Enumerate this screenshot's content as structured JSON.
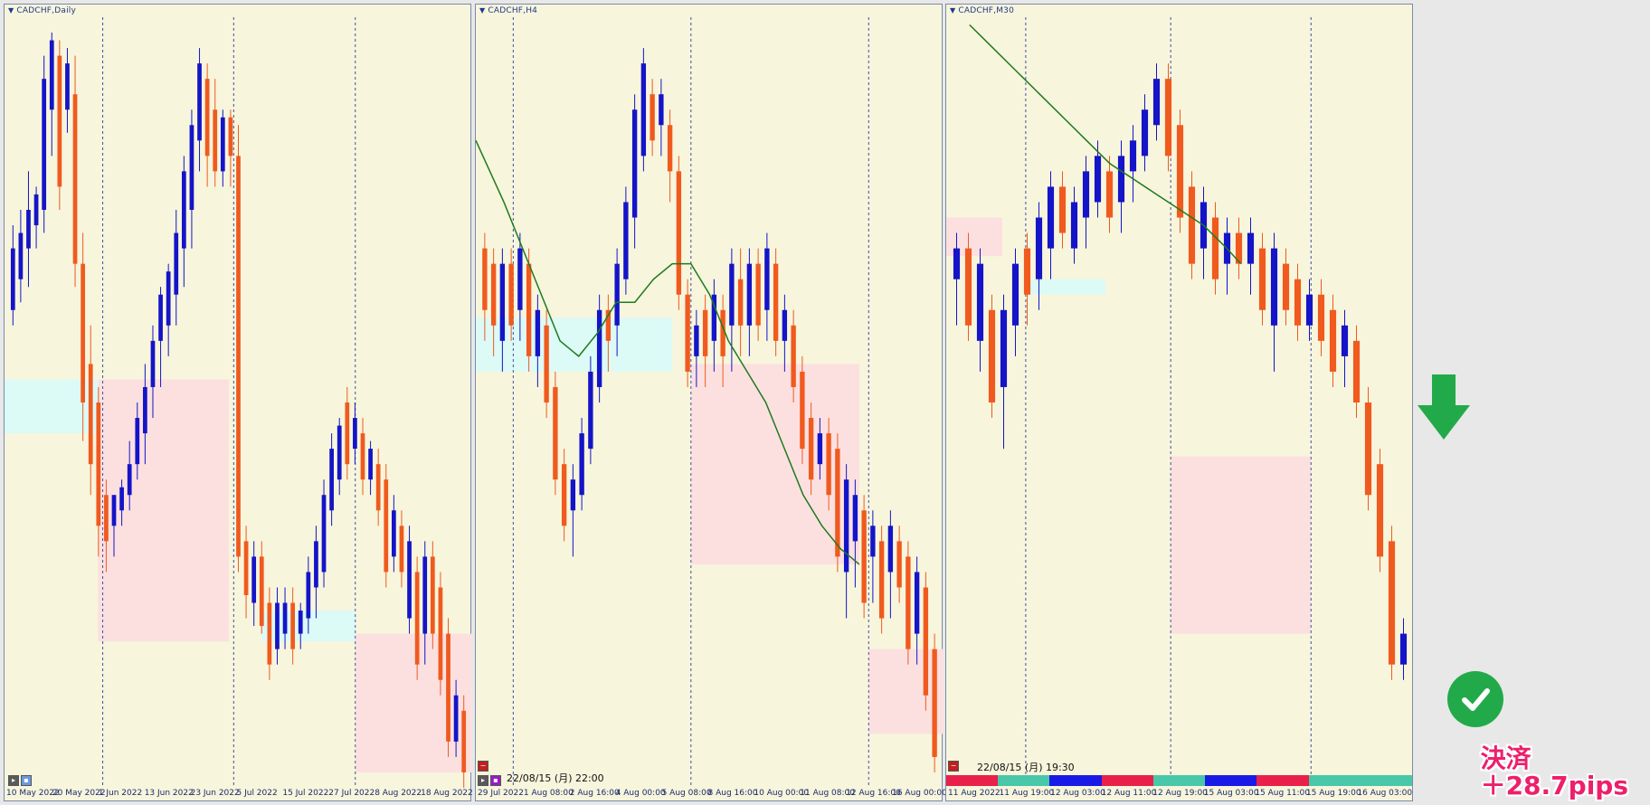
{
  "charts": [
    {
      "title": "CADCHF,Daily",
      "x_ticks": [
        "10 May 2022",
        "20 May 2022",
        "1 Jun 2022",
        "13 Jun 2022",
        "23 Jun 2022",
        "5 Jul 2022",
        "15 Jul 2022",
        "27 Jul 2022",
        "8 Aug 2022",
        "18 Aug 2022"
      ],
      "zones": [
        {
          "type": "demand",
          "x0": 0.0,
          "x1": 0.2,
          "y0": 0.47,
          "y1": 0.54
        },
        {
          "type": "supply",
          "x0": 0.2,
          "x1": 0.48,
          "y0": 0.47,
          "y1": 0.81
        },
        {
          "type": "demand",
          "x0": 0.55,
          "x1": 0.75,
          "y0": 0.77,
          "y1": 0.81
        },
        {
          "type": "supply",
          "x0": 0.75,
          "x1": 1.0,
          "y0": 0.8,
          "y1": 0.98
        }
      ],
      "vlines": [
        0.21,
        0.49,
        0.75
      ],
      "candles": [
        [
          1,
          0.27,
          0.4,
          0.3,
          0.38
        ],
        [
          1,
          0.25,
          0.37,
          0.28,
          0.34
        ],
        [
          1,
          0.2,
          0.35,
          0.3,
          0.25
        ],
        [
          1,
          0.22,
          0.3,
          0.27,
          0.23
        ],
        [
          1,
          0.05,
          0.28,
          0.25,
          0.08
        ],
        [
          1,
          0.02,
          0.18,
          0.12,
          0.03
        ],
        [
          0,
          0.03,
          0.25,
          0.05,
          0.22
        ],
        [
          1,
          0.04,
          0.15,
          0.12,
          0.06
        ],
        [
          0,
          0.05,
          0.35,
          0.1,
          0.32
        ],
        [
          0,
          0.28,
          0.55,
          0.32,
          0.5
        ],
        [
          0,
          0.4,
          0.62,
          0.45,
          0.58
        ],
        [
          0,
          0.48,
          0.7,
          0.5,
          0.66
        ],
        [
          0,
          0.6,
          0.72,
          0.62,
          0.68
        ],
        [
          1,
          0.62,
          0.7,
          0.66,
          0.62
        ],
        [
          1,
          0.6,
          0.66,
          0.64,
          0.61
        ],
        [
          1,
          0.55,
          0.64,
          0.62,
          0.58
        ],
        [
          1,
          0.5,
          0.6,
          0.58,
          0.52
        ],
        [
          1,
          0.45,
          0.58,
          0.54,
          0.48
        ],
        [
          1,
          0.4,
          0.52,
          0.48,
          0.42
        ],
        [
          1,
          0.35,
          0.48,
          0.42,
          0.36
        ],
        [
          1,
          0.32,
          0.44,
          0.4,
          0.33
        ],
        [
          1,
          0.25,
          0.4,
          0.36,
          0.28
        ],
        [
          1,
          0.18,
          0.35,
          0.3,
          0.2
        ],
        [
          1,
          0.12,
          0.3,
          0.25,
          0.14
        ],
        [
          1,
          0.04,
          0.2,
          0.16,
          0.06
        ],
        [
          0,
          0.06,
          0.22,
          0.08,
          0.18
        ],
        [
          0,
          0.08,
          0.22,
          0.12,
          0.2
        ],
        [
          1,
          0.12,
          0.22,
          0.2,
          0.13
        ],
        [
          0,
          0.12,
          0.22,
          0.13,
          0.18
        ],
        [
          0,
          0.14,
          0.72,
          0.18,
          0.7
        ],
        [
          0,
          0.66,
          0.78,
          0.68,
          0.75
        ],
        [
          1,
          0.68,
          0.79,
          0.76,
          0.7
        ],
        [
          0,
          0.68,
          0.8,
          0.7,
          0.79
        ],
        [
          0,
          0.74,
          0.86,
          0.76,
          0.84
        ],
        [
          1,
          0.74,
          0.84,
          0.82,
          0.76
        ],
        [
          1,
          0.74,
          0.82,
          0.8,
          0.76
        ],
        [
          0,
          0.74,
          0.84,
          0.76,
          0.82
        ],
        [
          1,
          0.76,
          0.82,
          0.8,
          0.77
        ],
        [
          1,
          0.7,
          0.8,
          0.78,
          0.72
        ],
        [
          1,
          0.66,
          0.78,
          0.74,
          0.68
        ],
        [
          1,
          0.6,
          0.74,
          0.72,
          0.62
        ],
        [
          1,
          0.54,
          0.66,
          0.64,
          0.56
        ],
        [
          1,
          0.52,
          0.62,
          0.6,
          0.53
        ],
        [
          0,
          0.48,
          0.6,
          0.5,
          0.58
        ],
        [
          1,
          0.5,
          0.58,
          0.56,
          0.52
        ],
        [
          0,
          0.52,
          0.62,
          0.54,
          0.6
        ],
        [
          1,
          0.55,
          0.62,
          0.6,
          0.56
        ],
        [
          0,
          0.56,
          0.66,
          0.58,
          0.64
        ],
        [
          0,
          0.58,
          0.74,
          0.6,
          0.72
        ],
        [
          1,
          0.62,
          0.72,
          0.7,
          0.64
        ],
        [
          0,
          0.64,
          0.74,
          0.66,
          0.72
        ],
        [
          1,
          0.66,
          0.8,
          0.78,
          0.68
        ],
        [
          0,
          0.7,
          0.86,
          0.72,
          0.84
        ],
        [
          1,
          0.68,
          0.84,
          0.8,
          0.7
        ],
        [
          0,
          0.68,
          0.82,
          0.7,
          0.8
        ],
        [
          0,
          0.72,
          0.88,
          0.74,
          0.86
        ],
        [
          0,
          0.78,
          0.96,
          0.8,
          0.94
        ],
        [
          1,
          0.86,
          0.96,
          0.94,
          0.88
        ],
        [
          0,
          0.88,
          1.0,
          0.9,
          0.98
        ]
      ]
    },
    {
      "title": "CADCHF,H4",
      "x_ticks": [
        "29 Jul 2022",
        "1 Aug 08:00",
        "2 Aug 16:00",
        "4 Aug 00:00",
        "5 Aug 08:00",
        "8 Aug 16:00",
        "10 Aug 00:00",
        "11 Aug 08:00",
        "12 Aug 16:00",
        "16 Aug 00:00"
      ],
      "zones": [
        {
          "type": "demand",
          "x0": 0.0,
          "x1": 0.42,
          "y0": 0.39,
          "y1": 0.46
        },
        {
          "type": "supply",
          "x0": 0.46,
          "x1": 0.82,
          "y0": 0.45,
          "y1": 0.71
        },
        {
          "type": "supply",
          "x0": 0.84,
          "x1": 1.0,
          "y0": 0.82,
          "y1": 0.93
        }
      ],
      "vlines": [
        0.08,
        0.46,
        0.84
      ],
      "ma_line": [
        [
          0.0,
          0.16
        ],
        [
          0.06,
          0.24
        ],
        [
          0.1,
          0.3
        ],
        [
          0.14,
          0.36
        ],
        [
          0.18,
          0.42
        ],
        [
          0.22,
          0.44
        ],
        [
          0.26,
          0.41
        ],
        [
          0.3,
          0.37
        ],
        [
          0.34,
          0.37
        ],
        [
          0.38,
          0.34
        ],
        [
          0.42,
          0.32
        ],
        [
          0.46,
          0.32
        ],
        [
          0.5,
          0.36
        ],
        [
          0.54,
          0.42
        ],
        [
          0.58,
          0.46
        ],
        [
          0.62,
          0.5
        ],
        [
          0.66,
          0.56
        ],
        [
          0.7,
          0.62
        ],
        [
          0.74,
          0.66
        ],
        [
          0.78,
          0.69
        ],
        [
          0.82,
          0.71
        ]
      ],
      "candles": [
        [
          0,
          0.28,
          0.42,
          0.3,
          0.38
        ],
        [
          0,
          0.3,
          0.44,
          0.32,
          0.4
        ],
        [
          1,
          0.3,
          0.46,
          0.42,
          0.32
        ],
        [
          0,
          0.3,
          0.42,
          0.32,
          0.4
        ],
        [
          1,
          0.28,
          0.42,
          0.38,
          0.3
        ],
        [
          0,
          0.3,
          0.46,
          0.32,
          0.44
        ],
        [
          1,
          0.36,
          0.48,
          0.44,
          0.38
        ],
        [
          0,
          0.38,
          0.52,
          0.4,
          0.5
        ],
        [
          0,
          0.46,
          0.62,
          0.48,
          0.6
        ],
        [
          0,
          0.56,
          0.68,
          0.58,
          0.66
        ],
        [
          1,
          0.58,
          0.7,
          0.64,
          0.6
        ],
        [
          1,
          0.52,
          0.64,
          0.62,
          0.54
        ],
        [
          1,
          0.44,
          0.58,
          0.56,
          0.46
        ],
        [
          1,
          0.36,
          0.5,
          0.48,
          0.38
        ],
        [
          0,
          0.36,
          0.46,
          0.38,
          0.42
        ],
        [
          1,
          0.3,
          0.44,
          0.4,
          0.32
        ],
        [
          1,
          0.22,
          0.36,
          0.34,
          0.24
        ],
        [
          1,
          0.1,
          0.3,
          0.26,
          0.12
        ],
        [
          1,
          0.04,
          0.2,
          0.18,
          0.06
        ],
        [
          0,
          0.08,
          0.18,
          0.1,
          0.16
        ],
        [
          1,
          0.08,
          0.18,
          0.14,
          0.1
        ],
        [
          0,
          0.12,
          0.24,
          0.14,
          0.2
        ],
        [
          0,
          0.18,
          0.38,
          0.2,
          0.36
        ],
        [
          0,
          0.34,
          0.48,
          0.36,
          0.46
        ],
        [
          1,
          0.38,
          0.48,
          0.44,
          0.4
        ],
        [
          0,
          0.36,
          0.48,
          0.38,
          0.44
        ],
        [
          1,
          0.34,
          0.46,
          0.42,
          0.36
        ],
        [
          0,
          0.36,
          0.48,
          0.38,
          0.44
        ],
        [
          1,
          0.3,
          0.46,
          0.4,
          0.32
        ],
        [
          0,
          0.3,
          0.44,
          0.34,
          0.4
        ],
        [
          1,
          0.3,
          0.44,
          0.4,
          0.32
        ],
        [
          0,
          0.3,
          0.42,
          0.32,
          0.4
        ],
        [
          1,
          0.28,
          0.42,
          0.38,
          0.3
        ],
        [
          0,
          0.3,
          0.44,
          0.32,
          0.42
        ],
        [
          1,
          0.36,
          0.46,
          0.42,
          0.38
        ],
        [
          0,
          0.38,
          0.5,
          0.4,
          0.48
        ],
        [
          0,
          0.44,
          0.58,
          0.46,
          0.56
        ],
        [
          0,
          0.5,
          0.62,
          0.52,
          0.6
        ],
        [
          1,
          0.52,
          0.6,
          0.58,
          0.54
        ],
        [
          0,
          0.52,
          0.64,
          0.54,
          0.62
        ],
        [
          0,
          0.54,
          0.72,
          0.56,
          0.7
        ],
        [
          1,
          0.58,
          0.78,
          0.72,
          0.6
        ],
        [
          1,
          0.6,
          0.74,
          0.68,
          0.62
        ],
        [
          0,
          0.62,
          0.78,
          0.64,
          0.76
        ],
        [
          1,
          0.64,
          0.76,
          0.7,
          0.66
        ],
        [
          0,
          0.66,
          0.8,
          0.68,
          0.78
        ],
        [
          1,
          0.64,
          0.78,
          0.72,
          0.66
        ],
        [
          0,
          0.66,
          0.76,
          0.68,
          0.74
        ],
        [
          0,
          0.68,
          0.84,
          0.7,
          0.82
        ],
        [
          1,
          0.7,
          0.84,
          0.8,
          0.72
        ],
        [
          0,
          0.72,
          0.9,
          0.74,
          0.88
        ],
        [
          0,
          0.8,
          0.98,
          0.82,
          0.96
        ]
      ]
    },
    {
      "title": "CADCHF,M30",
      "x_ticks": [
        "11 Aug 2022",
        "11 Aug 19:00",
        "12 Aug 03:00",
        "12 Aug 11:00",
        "12 Aug 19:00",
        "15 Aug 03:00",
        "15 Aug 11:00",
        "15 Aug 19:00",
        "16 Aug 03:00"
      ],
      "zones": [
        {
          "type": "supply",
          "x0": 0.0,
          "x1": 0.12,
          "y0": 0.26,
          "y1": 0.31
        },
        {
          "type": "demand",
          "x0": 0.18,
          "x1": 0.34,
          "y0": 0.34,
          "y1": 0.36
        },
        {
          "type": "supply",
          "x0": 0.48,
          "x1": 0.78,
          "y0": 0.57,
          "y1": 0.8
        }
      ],
      "vlines": [
        0.17,
        0.48,
        0.78
      ],
      "ma_line": [
        [
          0.05,
          0.01
        ],
        [
          0.1,
          0.04
        ],
        [
          0.15,
          0.07
        ],
        [
          0.2,
          0.1
        ],
        [
          0.25,
          0.13
        ],
        [
          0.3,
          0.16
        ],
        [
          0.35,
          0.19
        ],
        [
          0.4,
          0.21
        ],
        [
          0.45,
          0.23
        ],
        [
          0.5,
          0.25
        ],
        [
          0.55,
          0.27
        ],
        [
          0.6,
          0.3
        ],
        [
          0.63,
          0.32
        ]
      ],
      "candles": [
        [
          1,
          0.28,
          0.4,
          0.34,
          0.3
        ],
        [
          0,
          0.28,
          0.42,
          0.3,
          0.4
        ],
        [
          1,
          0.3,
          0.46,
          0.42,
          0.32
        ],
        [
          0,
          0.36,
          0.52,
          0.38,
          0.5
        ],
        [
          1,
          0.36,
          0.56,
          0.48,
          0.38
        ],
        [
          1,
          0.3,
          0.44,
          0.4,
          0.32
        ],
        [
          0,
          0.28,
          0.4,
          0.3,
          0.36
        ],
        [
          1,
          0.24,
          0.38,
          0.34,
          0.26
        ],
        [
          1,
          0.2,
          0.34,
          0.3,
          0.22
        ],
        [
          0,
          0.2,
          0.3,
          0.22,
          0.28
        ],
        [
          1,
          0.22,
          0.32,
          0.3,
          0.24
        ],
        [
          1,
          0.18,
          0.3,
          0.26,
          0.2
        ],
        [
          1,
          0.16,
          0.26,
          0.24,
          0.18
        ],
        [
          0,
          0.18,
          0.28,
          0.2,
          0.26
        ],
        [
          1,
          0.16,
          0.28,
          0.24,
          0.18
        ],
        [
          1,
          0.14,
          0.24,
          0.2,
          0.16
        ],
        [
          1,
          0.1,
          0.2,
          0.18,
          0.12
        ],
        [
          1,
          0.06,
          0.16,
          0.14,
          0.08
        ],
        [
          0,
          0.06,
          0.2,
          0.08,
          0.18
        ],
        [
          0,
          0.12,
          0.28,
          0.14,
          0.26
        ],
        [
          0,
          0.2,
          0.34,
          0.22,
          0.32
        ],
        [
          1,
          0.22,
          0.34,
          0.3,
          0.24
        ],
        [
          0,
          0.24,
          0.36,
          0.26,
          0.34
        ],
        [
          1,
          0.26,
          0.36,
          0.32,
          0.28
        ],
        [
          0,
          0.26,
          0.34,
          0.28,
          0.32
        ],
        [
          1,
          0.26,
          0.36,
          0.32,
          0.28
        ],
        [
          0,
          0.28,
          0.4,
          0.3,
          0.38
        ],
        [
          1,
          0.28,
          0.46,
          0.4,
          0.3
        ],
        [
          0,
          0.3,
          0.4,
          0.32,
          0.38
        ],
        [
          0,
          0.32,
          0.42,
          0.34,
          0.4
        ],
        [
          1,
          0.34,
          0.42,
          0.4,
          0.36
        ],
        [
          0,
          0.34,
          0.44,
          0.36,
          0.42
        ],
        [
          0,
          0.36,
          0.48,
          0.38,
          0.46
        ],
        [
          1,
          0.38,
          0.48,
          0.44,
          0.4
        ],
        [
          0,
          0.4,
          0.52,
          0.42,
          0.5
        ],
        [
          0,
          0.48,
          0.64,
          0.5,
          0.62
        ],
        [
          0,
          0.56,
          0.72,
          0.58,
          0.7
        ],
        [
          0,
          0.66,
          0.86,
          0.68,
          0.84
        ],
        [
          1,
          0.78,
          0.86,
          0.84,
          0.8
        ]
      ]
    }
  ],
  "panel_H4": {
    "datetime": "22/08/15 (月) 22:00"
  },
  "panel_M30": {
    "datetime": "22/08/15 (月) 19:30",
    "strip_colors": [
      "#e8204a",
      "#48c8a8",
      "#1a1ae6",
      "#e8204a",
      "#48c8a8",
      "#1a1ae6",
      "#e8204a",
      "#48c8a8",
      "#48c8a8"
    ]
  },
  "annotation": {
    "line1": "決済",
    "line2": "＋28.7pips",
    "arrow_color": "#22aa4a",
    "check_color": "#22aa4a"
  },
  "colors": {
    "bull": "#1414c8",
    "bear": "#f05a1e",
    "demand_zone": "#dcfaf6",
    "supply_zone": "#fce0e0",
    "ma": "#1e7a1e",
    "grid": "#4050a0"
  }
}
